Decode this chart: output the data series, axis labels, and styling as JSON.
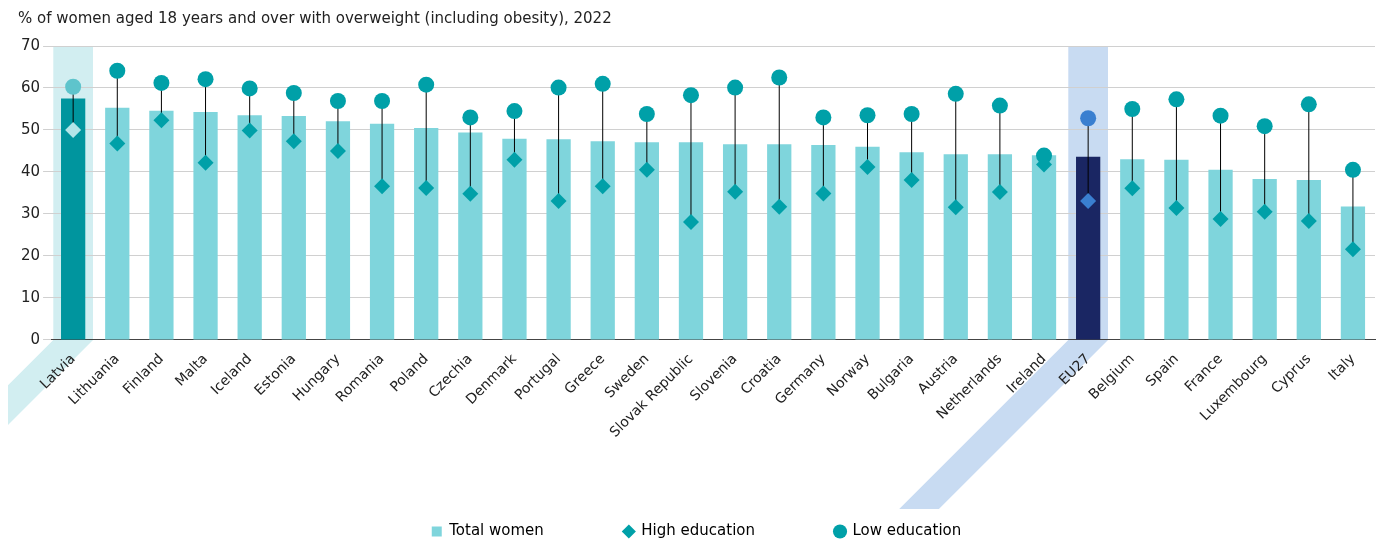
{
  "chart_data": {
    "type": "bar",
    "title": "% of women aged 18 years and over with overweight (including obesity), 2022",
    "categories": [
      "Latvia",
      "Lithuania",
      "Finland",
      "Malta",
      "Iceland",
      "Estonia",
      "Hungary",
      "Romania",
      "Poland",
      "Czechia",
      "Denmark",
      "Portugal",
      "Greece",
      "Sweden",
      "Slovak Republic",
      "Slovenia",
      "Croatia",
      "Germany",
      "Norway",
      "Bulgaria",
      "Austria",
      "Netherlands",
      "Ireland",
      "EU27",
      "Belgium",
      "Spain",
      "France",
      "Luxembourg",
      "Cyprus",
      "Italy"
    ],
    "series": [
      {
        "name": "Total women",
        "type": "bar",
        "color": "#7fd5dc",
        "colors": [
          "#00959e",
          "#7fd5dc",
          "#7fd5dc",
          "#7fd5dc",
          "#7fd5dc",
          "#7fd5dc",
          "#7fd5dc",
          "#7fd5dc",
          "#7fd5dc",
          "#7fd5dc",
          "#7fd5dc",
          "#7fd5dc",
          "#7fd5dc",
          "#7fd5dc",
          "#7fd5dc",
          "#7fd5dc",
          "#7fd5dc",
          "#7fd5dc",
          "#7fd5dc",
          "#7fd5dc",
          "#7fd5dc",
          "#7fd5dc",
          "#7fd5dc",
          "#1a2663",
          "#7fd5dc",
          "#7fd5dc",
          "#7fd5dc",
          "#7fd5dc",
          "#7fd5dc",
          "#7fd5dc"
        ],
        "values": [
          57.5,
          55.3,
          54.6,
          54.3,
          53.5,
          53.3,
          52.1,
          51.5,
          50.5,
          49.4,
          47.9,
          47.8,
          47.3,
          47.1,
          47.1,
          46.6,
          46.6,
          46.4,
          46.0,
          44.7,
          44.2,
          44.2,
          44.0,
          43.6,
          43.0,
          42.9,
          40.5,
          38.3,
          38.1,
          31.8
        ]
      },
      {
        "name": "High education",
        "type": "scatter",
        "marker": "diamond",
        "color": "#00a0a8",
        "colors": [
          "#b3e5e8",
          "#00a0a8",
          "#00a0a8",
          "#00a0a8",
          "#00a0a8",
          "#00a0a8",
          "#00a0a8",
          "#00a0a8",
          "#00a0a8",
          "#00a0a8",
          "#00a0a8",
          "#00a0a8",
          "#00a0a8",
          "#00a0a8",
          "#00a0a8",
          "#00a0a8",
          "#00a0a8",
          "#00a0a8",
          "#00a0a8",
          "#00a0a8",
          "#00a0a8",
          "#00a0a8",
          "#00a0a8",
          "#3a7fd0",
          "#00a0a8",
          "#00a0a8",
          "#00a0a8",
          "#00a0a8",
          "#00a0a8",
          "#00a0a8"
        ],
        "values": [
          50.0,
          46.8,
          52.3,
          42.2,
          49.9,
          47.3,
          45.0,
          36.6,
          36.2,
          34.8,
          42.9,
          33.1,
          36.6,
          40.5,
          28.1,
          35.3,
          31.7,
          34.9,
          41.2,
          38.1,
          31.6,
          35.2,
          41.8,
          33.1,
          36.1,
          31.4,
          28.8,
          30.5,
          28.3,
          21.6
        ]
      },
      {
        "name": "Low education",
        "type": "scatter",
        "marker": "circle",
        "color": "#00a0a8",
        "colors": [
          "#5ec4cc",
          "#00a0a8",
          "#00a0a8",
          "#00a0a8",
          "#00a0a8",
          "#00a0a8",
          "#00a0a8",
          "#00a0a8",
          "#00a0a8",
          "#00a0a8",
          "#00a0a8",
          "#00a0a8",
          "#00a0a8",
          "#00a0a8",
          "#00a0a8",
          "#00a0a8",
          "#00a0a8",
          "#00a0a8",
          "#00a0a8",
          "#00a0a8",
          "#00a0a8",
          "#00a0a8",
          "#00a0a8",
          "#3a7fd0",
          "#00a0a8",
          "#00a0a8",
          "#00a0a8",
          "#00a0a8",
          "#00a0a8",
          "#00a0a8"
        ],
        "values": [
          60.3,
          64.1,
          61.2,
          62.1,
          59.9,
          58.8,
          56.9,
          56.9,
          60.8,
          53.0,
          54.5,
          60.1,
          61.0,
          53.8,
          58.3,
          60.1,
          62.5,
          53.0,
          53.5,
          53.8,
          58.6,
          55.8,
          43.9,
          52.8,
          55.0,
          57.3,
          53.4,
          50.9,
          56.1,
          40.5
        ]
      }
    ],
    "ylim": [
      0,
      70
    ],
    "yticks": [
      0,
      10,
      20,
      30,
      40,
      50,
      60,
      70
    ],
    "grid": "y",
    "legend": "bottom"
  }
}
